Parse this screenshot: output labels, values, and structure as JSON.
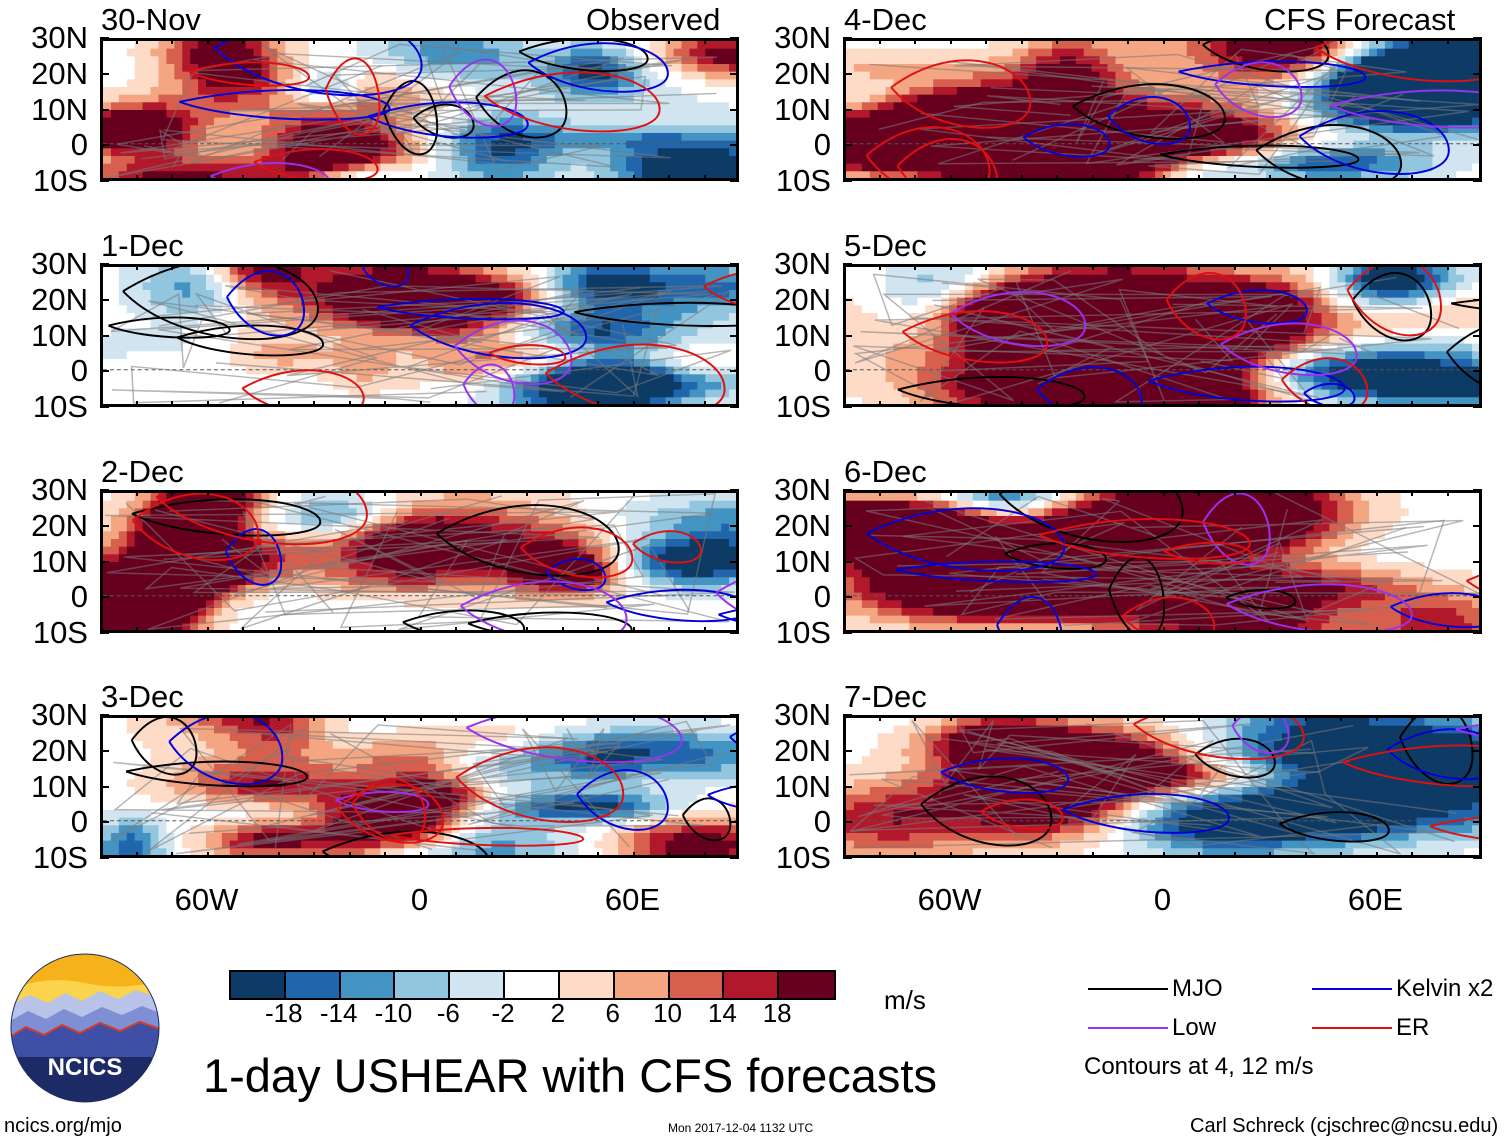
{
  "header": {
    "left_column_title": "Observed",
    "right_column_title": "CFS Forecast"
  },
  "panels": [
    {
      "date": "30-Nov",
      "column": "Observed"
    },
    {
      "date": "1-Dec",
      "column": "Observed"
    },
    {
      "date": "2-Dec",
      "column": "Observed"
    },
    {
      "date": "3-Dec",
      "column": "Observed"
    },
    {
      "date": "4-Dec",
      "column": "CFS Forecast"
    },
    {
      "date": "5-Dec",
      "column": "CFS Forecast"
    },
    {
      "date": "6-Dec",
      "column": "CFS Forecast"
    },
    {
      "date": "7-Dec",
      "column": "CFS Forecast"
    }
  ],
  "chart_data": {
    "type": "heatmap",
    "title": "1-day USHEAR with CFS forecasts",
    "variable": "USHEAR",
    "units": "m/s",
    "lat_ticks": [
      "30N",
      "20N",
      "10N",
      "0",
      "10S"
    ],
    "lat_values": [
      30,
      20,
      10,
      0,
      -10
    ],
    "lon_ticks": [
      "60W",
      "0",
      "60E"
    ],
    "lon_values": [
      -60,
      0,
      60
    ],
    "lon_range": [
      -90,
      90
    ],
    "lat_range": [
      -10,
      30
    ],
    "colorbar": {
      "levels": [
        -18,
        -14,
        -10,
        -6,
        -2,
        2,
        6,
        10,
        14,
        18
      ],
      "labels": [
        "-18",
        "-14",
        "-10",
        "-6",
        "-2",
        "2",
        "6",
        "10",
        "14",
        "18"
      ],
      "colors": [
        "#0d3b66",
        "#2166ac",
        "#4393c3",
        "#92c5de",
        "#d1e5f0",
        "#ffffff",
        "#fddbc7",
        "#f4a582",
        "#d6604d",
        "#b2182b",
        "#67001f"
      ]
    },
    "contours": {
      "legend": [
        {
          "name": "MJO",
          "color": "#000000"
        },
        {
          "name": "Kelvin x2",
          "color": "#0000dd"
        },
        {
          "name": "Low",
          "color": "#9933ee"
        },
        {
          "name": "ER",
          "color": "#e01010"
        }
      ],
      "note": "Contours at 4, 12 m/s"
    }
  },
  "footer": {
    "logo_text": "NCICS",
    "site": "ncics.org/mjo",
    "timestamp": "Mon 2017-12-04 1132 UTC",
    "author": "Carl Schreck (cjschrec@ncsu.edu)"
  }
}
